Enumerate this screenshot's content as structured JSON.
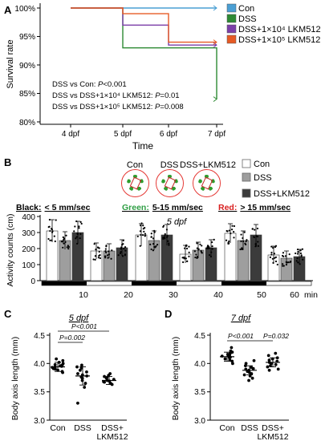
{
  "colors": {
    "con": "#4a9fd4",
    "dss": "#2d8a33",
    "dss_lkm_low": "#7b3fa8",
    "dss_lkm_high": "#e65a24",
    "bar_con": "#ffffff",
    "bar_dss": "#9e9e9e",
    "bar_dss_lkm": "#3b3b3b",
    "legend_green": "#2f9e44",
    "legend_red": "#d81f1f"
  },
  "panelA": {
    "letter": "A",
    "ylabel": "Survival rate",
    "xlabel": "Time",
    "yticks": [
      "100%",
      "95%",
      "90%",
      "85%",
      "80%"
    ],
    "xticks": [
      "4 dpf",
      "5 dpf",
      "6 dpf",
      "7 dpf"
    ],
    "legend": [
      "Con",
      "DSS",
      "DSS+1×10⁴ LKM512",
      "DSS+1×10⁵ LKM512"
    ],
    "stats": [
      {
        "label": "DSS vs Con: ",
        "p": "P",
        "value": "<0.001"
      },
      {
        "label": "DSS vs DSS+1×10⁴ LKM512: ",
        "p": "P",
        "value": "=0.01"
      },
      {
        "label": "DSS vs DSS+1×10⁵ LKM512: ",
        "p": "P",
        "value": "=0.008"
      }
    ]
  },
  "panelB": {
    "letter": "B",
    "thumb_labels": [
      "Con",
      "DSS",
      "DSS+LKM512"
    ],
    "legend": [
      "Con",
      "DSS",
      "DSS+LKM512"
    ],
    "speed": {
      "black_word": "Black:",
      "black_range": "< 5 mm/sec",
      "green_word": "Green:",
      "green_range": "5-15 mm/sec",
      "red_word": "Red:",
      "red_range": "> 15 mm/sec"
    },
    "inset": "5 dpf",
    "ylabel": "Activity counts (cm)",
    "yticks": [
      "0",
      "100",
      "200",
      "300",
      "400"
    ],
    "xticks": [
      "10",
      "20",
      "30",
      "40",
      "50",
      "60"
    ],
    "xunit": "min"
  },
  "panelC": {
    "letter": "C",
    "title": "5 dpf",
    "ylabel": "Body axis length (mm)",
    "yticks": [
      "4.5",
      "4.0",
      "3.5",
      "3.0"
    ],
    "xticks": [
      "Con",
      "DSS",
      "DSS+"
    ],
    "xtick_second_line": "LKM512",
    "brackets": [
      {
        "label": "P<0.001",
        "from": 0,
        "to": 2
      },
      {
        "label": "P=0.002",
        "from": 0,
        "to": 1
      }
    ]
  },
  "panelD": {
    "letter": "D",
    "title": "7 dpf",
    "ylabel": "Body axis length (mm)",
    "yticks": [
      "4.5",
      "4.0",
      "3.5",
      "3.0"
    ],
    "xticks": [
      "Con",
      "DSS",
      "DSS+"
    ],
    "xtick_second_line": "LKM512",
    "brackets": [
      {
        "label": "P<0.001",
        "from": 0,
        "to": 1
      },
      {
        "label": "P=0.032",
        "from": 1,
        "to": 2
      }
    ]
  },
  "chart_data": [
    {
      "panel": "A",
      "type": "line",
      "ylabel": "Survival rate",
      "xlabel": "Time",
      "x": [
        "4 dpf",
        "5 dpf",
        "6 dpf",
        "7 dpf"
      ],
      "ylim": [
        79,
        101
      ],
      "series": [
        {
          "name": "Con",
          "values": [
            100,
            100,
            100,
            100
          ]
        },
        {
          "name": "DSS",
          "values": [
            100,
            93,
            93,
            84
          ]
        },
        {
          "name": "DSS+1×10⁴ LKM512",
          "values": [
            100,
            97,
            93.5,
            93.5
          ]
        },
        {
          "name": "DSS+1×10⁵ LKM512",
          "values": [
            100,
            99,
            94,
            94
          ]
        }
      ]
    },
    {
      "panel": "B",
      "type": "bar",
      "ylabel": "Activity counts (cm)",
      "categories": [
        "10",
        "20",
        "30",
        "40",
        "50",
        "60"
      ],
      "xunit": "min",
      "ylim": [
        0,
        400
      ],
      "series": [
        {
          "name": "Con",
          "values": [
            310,
            185,
            285,
            165,
            295,
            160
          ]
        },
        {
          "name": "DSS",
          "values": [
            250,
            185,
            250,
            190,
            250,
            140
          ]
        },
        {
          "name": "DSS+LKM512",
          "values": [
            300,
            205,
            285,
            205,
            285,
            150
          ]
        }
      ],
      "errors": [
        [
          70,
          50,
          70,
          55,
          60,
          55
        ],
        [
          55,
          45,
          60,
          50,
          60,
          45
        ],
        [
          70,
          50,
          65,
          50,
          65,
          45
        ]
      ]
    },
    {
      "panel": "C",
      "type": "scatter",
      "title": "5 dpf",
      "ylabel": "Body axis length (mm)",
      "categories": [
        "Con",
        "DSS",
        "DSS+LKM512"
      ],
      "ylim": [
        3.0,
        4.5
      ],
      "means": [
        3.94,
        3.78,
        3.7
      ],
      "sd": [
        0.08,
        0.16,
        0.07
      ],
      "points": [
        [
          4.08,
          4.05,
          4.02,
          4.0,
          3.98,
          3.97,
          3.96,
          3.95,
          3.94,
          3.93,
          3.92,
          3.91,
          3.9,
          3.88,
          3.86,
          3.84
        ],
        [
          3.97,
          3.94,
          3.92,
          3.88,
          3.85,
          3.82,
          3.8,
          3.78,
          3.76,
          3.74,
          3.7,
          3.65,
          3.58,
          3.3
        ],
        [
          3.82,
          3.79,
          3.77,
          3.75,
          3.74,
          3.72,
          3.7,
          3.69,
          3.68,
          3.67,
          3.65,
          3.63
        ]
      ]
    },
    {
      "panel": "D",
      "type": "scatter",
      "title": "7 dpf",
      "ylabel": "Body axis length (mm)",
      "categories": [
        "Con",
        "DSS",
        "DSS+LKM512"
      ],
      "ylim": [
        3.0,
        4.5
      ],
      "means": [
        4.12,
        3.88,
        4.02
      ],
      "sd": [
        0.08,
        0.08,
        0.08
      ],
      "points": [
        [
          4.28,
          4.22,
          4.2,
          4.18,
          4.16,
          4.15,
          4.14,
          4.13,
          4.12,
          4.11,
          4.1,
          4.08,
          4.06,
          4.04,
          4.0
        ],
        [
          4.05,
          4.0,
          3.96,
          3.93,
          3.91,
          3.9,
          3.88,
          3.86,
          3.84,
          3.82,
          3.8,
          3.78,
          3.74,
          3.7
        ],
        [
          4.18,
          4.14,
          4.1,
          4.08,
          4.06,
          4.04,
          4.02,
          4.0,
          3.98,
          3.96,
          3.94,
          3.9,
          3.88
        ]
      ]
    }
  ]
}
